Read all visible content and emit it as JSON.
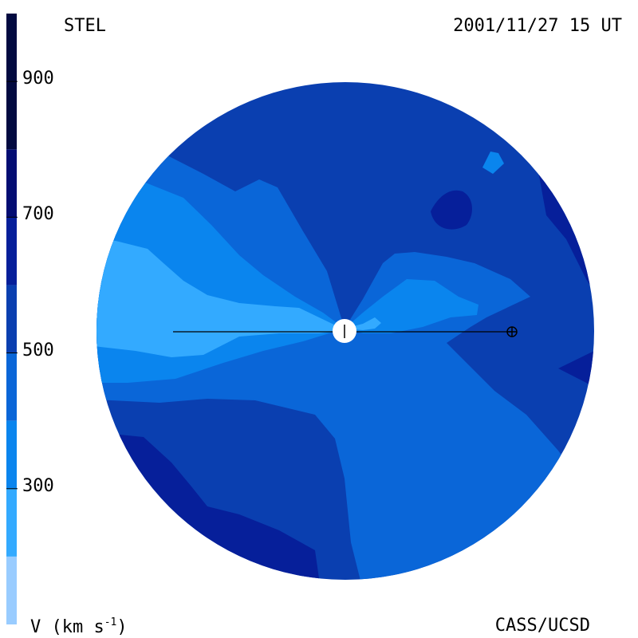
{
  "header": {
    "observatory": "STEL",
    "datetime": "2001/11/27 15 UT"
  },
  "footer": {
    "units_label": "V (km s",
    "units_exp": "-1",
    "units_close": ")",
    "credit": "CASS/UCSD"
  },
  "colorbar": {
    "ticks": [
      {
        "value": 900,
        "label": "900"
      },
      {
        "value": 700,
        "label": "700"
      },
      {
        "value": 500,
        "label": "500"
      },
      {
        "value": 300,
        "label": "300"
      }
    ],
    "bands": [
      {
        "min": 100,
        "max": 200,
        "color": "#99ccff"
      },
      {
        "min": 200,
        "max": 300,
        "color": "#33aaff"
      },
      {
        "min": 300,
        "max": 400,
        "color": "#0a85ee"
      },
      {
        "min": 400,
        "max": 500,
        "color": "#0a66d8"
      },
      {
        "min": 500,
        "max": 600,
        "color": "#0a3fb0"
      },
      {
        "min": 600,
        "max": 700,
        "color": "#061f9a"
      },
      {
        "min": 700,
        "max": 800,
        "color": "#030d73"
      },
      {
        "min": 800,
        "max": 1000,
        "color": "#020a40"
      }
    ]
  },
  "colors": {
    "v250": "#33aaff",
    "v350": "#0a85ee",
    "v450": "#0a66d8",
    "v550": "#0a3fb0",
    "v650": "#061f9a",
    "v750": "#030d73"
  }
}
